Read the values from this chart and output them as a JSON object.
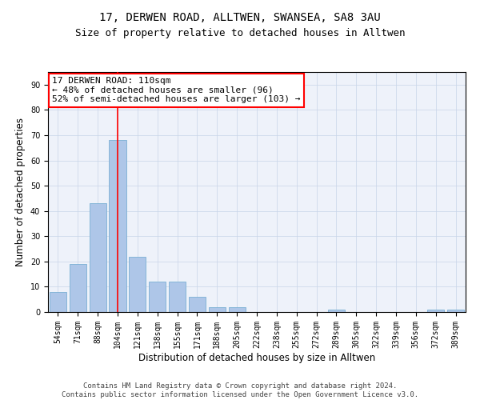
{
  "title_line1": "17, DERWEN ROAD, ALLTWEN, SWANSEA, SA8 3AU",
  "title_line2": "Size of property relative to detached houses in Alltwen",
  "xlabel": "Distribution of detached houses by size in Alltwen",
  "ylabel": "Number of detached properties",
  "categories": [
    "54sqm",
    "71sqm",
    "88sqm",
    "104sqm",
    "121sqm",
    "138sqm",
    "155sqm",
    "171sqm",
    "188sqm",
    "205sqm",
    "222sqm",
    "238sqm",
    "255sqm",
    "272sqm",
    "289sqm",
    "305sqm",
    "322sqm",
    "339sqm",
    "356sqm",
    "372sqm",
    "389sqm"
  ],
  "values": [
    8,
    19,
    43,
    68,
    22,
    12,
    12,
    6,
    2,
    2,
    0,
    0,
    0,
    0,
    1,
    0,
    0,
    0,
    0,
    1,
    1
  ],
  "bar_color": "#aec6e8",
  "bar_edge_color": "#7aafd4",
  "grid_color": "#c8d4e8",
  "bg_color": "#eef2fa",
  "vline_x_bar_index": 3,
  "vline_color": "red",
  "annotation_line1": "17 DERWEN ROAD: 110sqm",
  "annotation_line2": "← 48% of detached houses are smaller (96)",
  "annotation_line3": "52% of semi-detached houses are larger (103) →",
  "annotation_box_color": "white",
  "annotation_box_edge_color": "red",
  "ylim": [
    0,
    95
  ],
  "yticks": [
    0,
    10,
    20,
    30,
    40,
    50,
    60,
    70,
    80,
    90
  ],
  "footer_text": "Contains HM Land Registry data © Crown copyright and database right 2024.\nContains public sector information licensed under the Open Government Licence v3.0.",
  "title_fontsize": 10,
  "subtitle_fontsize": 9,
  "axis_label_fontsize": 8.5,
  "tick_fontsize": 7,
  "annotation_fontsize": 8,
  "footer_fontsize": 6.5
}
